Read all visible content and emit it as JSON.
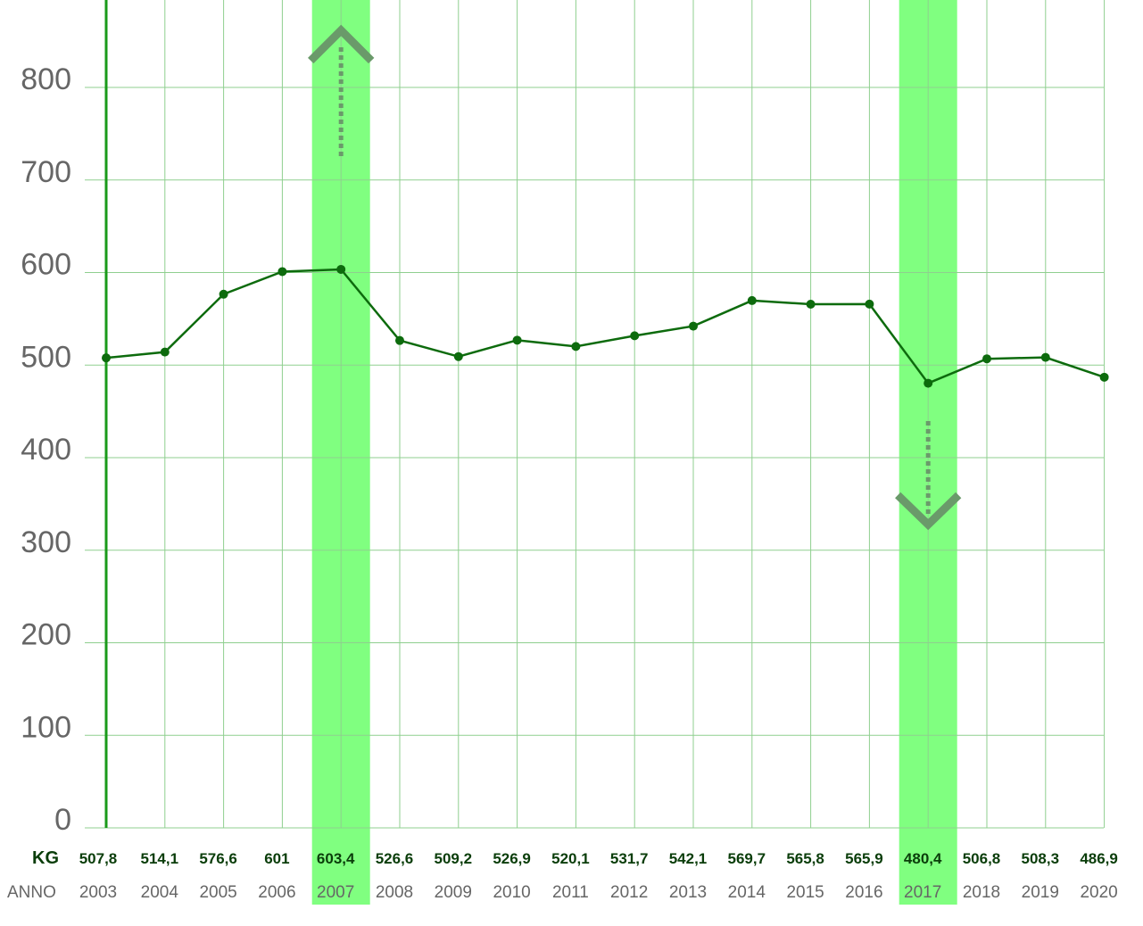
{
  "chart_data": {
    "type": "line",
    "title": "",
    "xlabel": "ANNO",
    "ylabel": "KG",
    "ylim": [
      0,
      800
    ],
    "yticks": [
      0,
      100,
      200,
      300,
      400,
      500,
      600,
      700,
      800
    ],
    "grid": true,
    "categories": [
      "2003",
      "2004",
      "2005",
      "2006",
      "2007",
      "2008",
      "2009",
      "2010",
      "2011",
      "2012",
      "2013",
      "2014",
      "2015",
      "2016",
      "2017",
      "2018",
      "2019",
      "2020"
    ],
    "values": [
      507.8,
      514.1,
      576.6,
      601,
      603.4,
      526.6,
      509.2,
      526.9,
      520.1,
      531.7,
      542.1,
      569.7,
      565.8,
      565.9,
      480.4,
      506.8,
      508.3,
      486.9
    ],
    "value_labels": [
      "507,8",
      "514,1",
      "576,6",
      "601",
      "603,4",
      "526,6",
      "509,2",
      "526,9",
      "520,1",
      "531,7",
      "542,1",
      "569,7",
      "565,8",
      "565,9",
      "480,4",
      "506,8",
      "508,3",
      "486,9"
    ],
    "row_labels": {
      "kg": "KG",
      "anno": "ANNO"
    },
    "highlights": [
      {
        "category": "2007",
        "marker": "up-arrow"
      },
      {
        "category": "2017",
        "marker": "down-arrow"
      }
    ],
    "colors": {
      "line": "#0d6b0d",
      "grid": "#8fcf8f",
      "axis": "#1a9a1a",
      "highlight": "#80ff80",
      "arrow": "#6a9a6a"
    }
  }
}
